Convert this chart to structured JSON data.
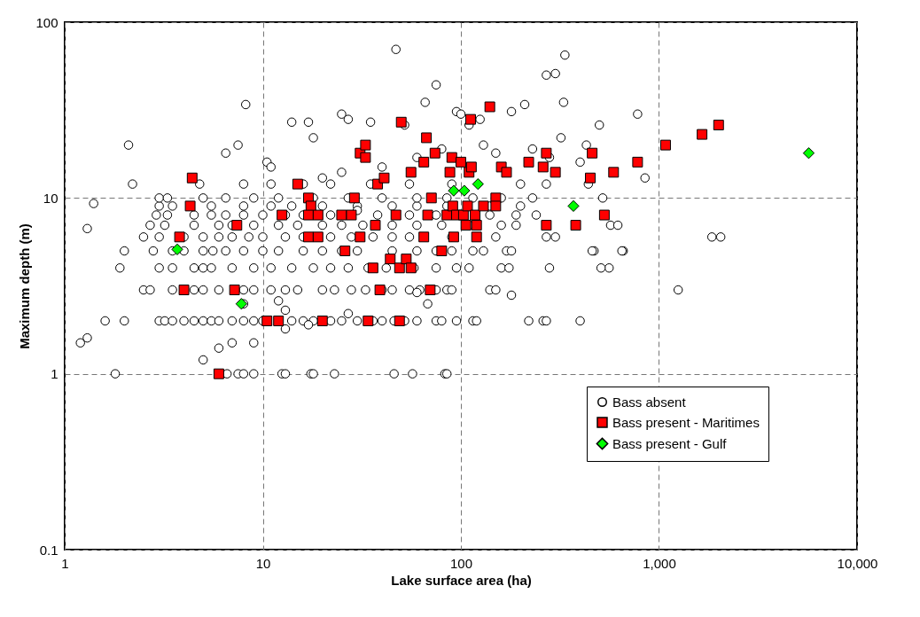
{
  "chart_data": {
    "type": "scatter",
    "xlabel": "Lake surface area (ha)",
    "ylabel": "Maximum depth (m)",
    "log": "xy",
    "grid": true,
    "legend": "bottom right",
    "xlim": [
      1,
      10000
    ],
    "xticks": [
      1,
      10,
      100,
      {
        "value": 1000,
        "label": "1,000"
      },
      {
        "value": 10000,
        "label": "10,000"
      }
    ],
    "ylim": [
      0.1,
      100
    ],
    "yticks": [
      0.1,
      1,
      10,
      100
    ],
    "series": [
      {
        "name": "Bass absent",
        "color": "#ffffff",
        "marker": "circle",
        "x": [
          1.8,
          6.6,
          7.5,
          8,
          9,
          12.5,
          13,
          17.5,
          18,
          23,
          46,
          57,
          83,
          85,
          1.6,
          2,
          3,
          3.2,
          3.5,
          4,
          4.5,
          5,
          5.5,
          6,
          7,
          8,
          9,
          10,
          14,
          16,
          18,
          22,
          25,
          30,
          36,
          40,
          46,
          52,
          60,
          75,
          80,
          95,
          115,
          120,
          220,
          260,
          270,
          400,
          2.5,
          2.7,
          3.5,
          4.5,
          5,
          6,
          8,
          9,
          11,
          13,
          15,
          20,
          23,
          28,
          33,
          40,
          45,
          55,
          62,
          75,
          85,
          90,
          140,
          150,
          1250,
          1.9,
          3,
          3.5,
          4.5,
          5,
          5.5,
          7,
          9,
          11,
          14,
          18,
          22,
          27,
          34,
          42,
          58,
          75,
          95,
          110,
          160,
          175,
          280,
          560,
          2,
          2.8,
          3.5,
          4,
          5,
          5.6,
          6.5,
          8,
          10,
          12,
          16,
          20,
          25,
          30,
          45,
          60,
          75,
          90,
          115,
          130,
          170,
          180,
          470,
          660,
          2.5,
          3,
          4,
          5,
          6,
          7,
          8.5,
          10,
          13,
          16,
          22,
          28,
          36,
          45,
          55,
          90,
          150,
          270,
          300,
          2.7,
          3.2,
          4.5,
          6,
          7,
          9,
          12,
          15,
          20,
          25,
          32,
          45,
          60,
          80,
          110,
          160,
          190,
          570,
          2.9,
          3.3,
          4.5,
          5.5,
          6.5,
          8,
          10,
          13,
          16,
          22,
          38,
          55,
          75,
          140,
          190,
          240,
          3,
          3.5,
          5.5,
          8,
          11,
          14,
          20,
          30,
          45,
          60,
          85,
          140,
          200,
          3,
          3.3,
          5,
          6.5,
          9,
          12,
          18,
          27,
          40,
          60,
          85,
          115,
          160,
          230,
          520,
          2.2,
          4.8,
          8,
          11,
          16,
          22,
          35,
          55,
          90,
          200,
          270,
          1.2,
          1.3,
          1.3,
          1.4,
          2.1,
          6.5,
          7.5,
          8.2,
          10.5,
          11,
          14,
          17,
          18,
          25,
          27,
          35,
          47,
          52,
          66,
          75,
          95,
          100,
          110,
          125,
          130,
          180,
          210,
          270,
          300,
          330,
          335,
          430,
          500,
          780,
          1850,
          2050,
          620,
          510,
          460,
          850,
          400,
          440,
          650,
          5,
          6,
          7,
          9,
          12,
          13,
          17,
          27,
          68,
          8,
          60,
          180,
          13,
          30,
          20,
          25,
          40,
          60,
          80,
          150,
          230,
          280,
          320
        ],
        "values": [
          1,
          1,
          1,
          1,
          1,
          1,
          1,
          1,
          1,
          1,
          1,
          1,
          1,
          1,
          2,
          2,
          2,
          2,
          2,
          2,
          2,
          2,
          2,
          2,
          2,
          2,
          2,
          2,
          2,
          2,
          2,
          2,
          2,
          2,
          2,
          2,
          2,
          2,
          2,
          2,
          2,
          2,
          2,
          2,
          2,
          2,
          2,
          2,
          3,
          3,
          3,
          3,
          3,
          3,
          3,
          3,
          3,
          3,
          3,
          3,
          3,
          3,
          3,
          3,
          3,
          3,
          3,
          3,
          3,
          3,
          3,
          3,
          3,
          4,
          4,
          4,
          4,
          4,
          4,
          4,
          4,
          4,
          4,
          4,
          4,
          4,
          4,
          4,
          4,
          4,
          4,
          4,
          4,
          4,
          4,
          4,
          5,
          5,
          5,
          5,
          5,
          5,
          5,
          5,
          5,
          5,
          5,
          5,
          5,
          5,
          5,
          5,
          5,
          5,
          5,
          5,
          5,
          5,
          5,
          5,
          6,
          6,
          6,
          6,
          6,
          6,
          6,
          6,
          6,
          6,
          6,
          6,
          6,
          6,
          6,
          6,
          6,
          6,
          6,
          7,
          7,
          7,
          7,
          7,
          7,
          7,
          7,
          7,
          7,
          7,
          7,
          7,
          7,
          7,
          7,
          7,
          7,
          8,
          8,
          8,
          8,
          8,
          8,
          8,
          8,
          8,
          8,
          8,
          8,
          8,
          8,
          8,
          8,
          9,
          9,
          9,
          9,
          9,
          9,
          9,
          9,
          9,
          9,
          9,
          9,
          9,
          10,
          10,
          10,
          10,
          10,
          10,
          10,
          10,
          10,
          10,
          10,
          10,
          10,
          10,
          10,
          12,
          12,
          12,
          12,
          12,
          12,
          12,
          12,
          12,
          12,
          12,
          1.5,
          1.6,
          6.7,
          9.3,
          20,
          18,
          20,
          34,
          16,
          15,
          27,
          27,
          22,
          30,
          28,
          27,
          70,
          26,
          35,
          44,
          31,
          30,
          26,
          28,
          20,
          31,
          34,
          50,
          51,
          35,
          65,
          20,
          26,
          30,
          6,
          6,
          7,
          4,
          5,
          13,
          16,
          12,
          5,
          1.2,
          1.4,
          1.5,
          1.5,
          2.6,
          1.8,
          1.9,
          2.2,
          2.5,
          2.5,
          2.9,
          2.8,
          2.3,
          8.5,
          13,
          14,
          15,
          17,
          19,
          18,
          19,
          17,
          22
        ]
      },
      {
        "name": "Bass present - Maritimes",
        "color": "#ff0000",
        "marker": "square",
        "x": [
          4.4,
          4.3,
          3.8,
          4,
          7.4,
          7.2,
          6,
          10.5,
          12,
          12.5,
          15,
          17,
          17.5,
          17,
          17,
          19,
          19,
          20,
          25,
          26,
          28,
          29,
          31,
          31,
          33,
          33,
          34,
          36,
          37,
          38,
          39,
          41,
          44,
          47,
          49,
          49,
          50,
          53,
          56,
          56,
          65,
          65,
          67,
          68,
          70,
          71,
          74,
          80,
          85,
          88,
          90,
          91,
          92,
          95,
          100,
          103,
          106,
          108,
          110,
          112,
          113,
          118,
          120,
          120,
          130,
          140,
          150,
          150,
          160,
          170,
          220,
          270,
          260,
          270,
          300,
          380,
          450,
          460,
          530,
          590,
          780,
          1080,
          1650,
          2000
        ],
        "values": [
          13,
          9,
          6,
          3,
          7,
          3,
          1,
          2,
          2,
          8,
          12,
          10,
          9,
          8,
          6,
          8,
          6,
          2,
          8,
          5,
          8,
          10,
          6,
          18,
          20,
          17,
          2,
          4,
          7,
          12,
          3,
          13,
          4.5,
          8,
          4,
          2,
          27,
          4.5,
          4,
          14,
          6,
          16,
          22,
          8,
          3,
          10,
          18,
          5,
          8,
          14,
          17,
          9,
          6,
          8,
          16,
          8,
          7,
          9,
          14,
          28,
          15,
          8,
          7,
          6,
          9,
          33,
          10,
          9,
          15,
          14,
          16,
          7,
          15,
          18,
          14,
          7,
          13,
          18,
          8,
          14,
          16,
          20,
          23,
          26
        ]
      },
      {
        "name": "Bass present - Gulf",
        "color": "#00ff00",
        "marker": "diamond",
        "x": [
          3.7,
          7.8,
          92,
          104,
          122,
          370,
          5700
        ],
        "values": [
          5.1,
          2.5,
          11,
          11,
          12,
          9,
          18
        ]
      }
    ]
  }
}
